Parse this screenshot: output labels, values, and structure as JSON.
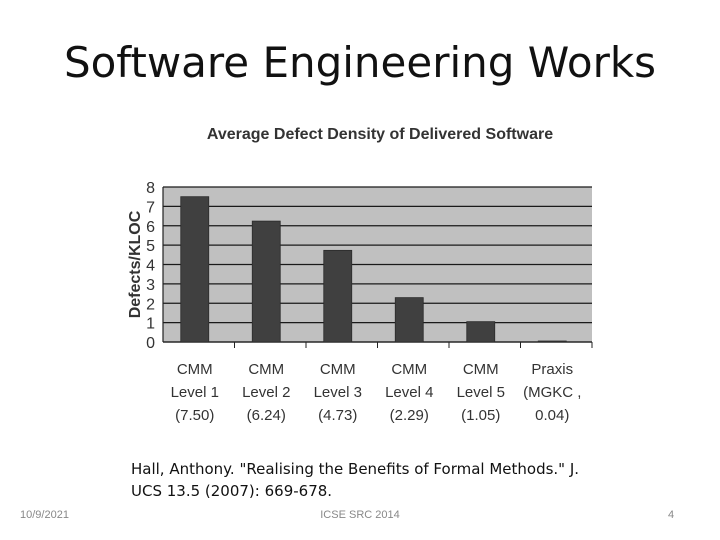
{
  "slide": {
    "title": "Software Engineering Works",
    "citation_line1": "Hall, Anthony. \"Realising the Benefits of Formal Methods.\" J.",
    "citation_line2": "UCS 13.5 (2007): 669-678.",
    "footer_date": "10/9/2021",
    "footer_center": "ICSE SRC 2014",
    "page_number": "4"
  },
  "chart_data": {
    "type": "bar",
    "title": "Average Defect Density of Delivered Software",
    "ylabel": "Defects/KLOC",
    "xlabel": "",
    "ylim": [
      0,
      8
    ],
    "yticks": [
      "0",
      "1",
      "2",
      "3",
      "4",
      "5",
      "6",
      "7",
      "8"
    ],
    "categories": [
      [
        "CMM",
        "Level 1",
        "(7.50)"
      ],
      [
        "CMM",
        "Level 2",
        "(6.24)"
      ],
      [
        "CMM",
        "Level 3",
        "(4.73)"
      ],
      [
        "CMM",
        "Level 4",
        "(2.29)"
      ],
      [
        "CMM",
        "Level 5",
        "(1.05)"
      ],
      [
        "Praxis",
        "(MGKC ,",
        "0.04)"
      ]
    ],
    "values": [
      7.5,
      6.24,
      4.73,
      2.29,
      1.05,
      0.04
    ],
    "grid": true,
    "colors": {
      "bar": "#404040",
      "plot_bg": "#c0c0c0",
      "grid": "#1a1a1a",
      "text": "#333333"
    }
  }
}
